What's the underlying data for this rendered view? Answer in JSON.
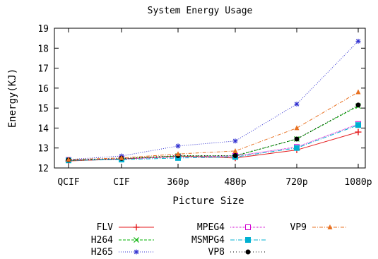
{
  "chart_data": {
    "type": "line",
    "title": "System Energy Usage",
    "xlabel": "Picture Size",
    "ylabel": "Energy(KJ)",
    "categories": [
      "QCIF",
      "CIF",
      "360p",
      "480p",
      "720p",
      "1080p"
    ],
    "yticks": [
      "12",
      "13",
      "14",
      "15",
      "16",
      "17",
      "18",
      "19"
    ],
    "ylim": [
      12,
      19
    ],
    "grid": false,
    "legend_position": "bottom",
    "series": [
      {
        "name": "FLV",
        "color": "#e41a1c",
        "marker": "plus",
        "dash": "",
        "values": [
          12.35,
          12.45,
          12.6,
          12.5,
          12.9,
          13.8
        ]
      },
      {
        "name": "H264",
        "color": "#00b000",
        "marker": "cross",
        "dash": "4,2",
        "values": [
          12.38,
          12.45,
          12.6,
          12.6,
          13.45,
          15.1
        ]
      },
      {
        "name": "H265",
        "color": "#3030d0",
        "marker": "star",
        "dash": "1,2",
        "values": [
          12.42,
          12.6,
          13.1,
          13.35,
          15.2,
          18.35
        ]
      },
      {
        "name": "MPEG4",
        "color": "#d000d0",
        "marker": "square-open",
        "dash": "1,1",
        "values": [
          12.4,
          12.45,
          12.55,
          12.6,
          13.05,
          14.2
        ]
      },
      {
        "name": "MSMPG4",
        "color": "#00b0d0",
        "marker": "square-filled",
        "dash": "6,2,1,2",
        "values": [
          12.38,
          12.42,
          12.5,
          12.55,
          13.0,
          14.15
        ]
      },
      {
        "name": "VP8",
        "color": "#000000",
        "marker": "circle-filled",
        "dash": "1,3",
        "values": [
          12.4,
          12.48,
          12.62,
          12.62,
          13.45,
          15.15
        ]
      },
      {
        "name": "VP9",
        "color": "#e87020",
        "marker": "triangle-filled",
        "dash": "5,2,1,2",
        "values": [
          12.42,
          12.5,
          12.7,
          12.85,
          14.0,
          15.8
        ]
      }
    ]
  }
}
